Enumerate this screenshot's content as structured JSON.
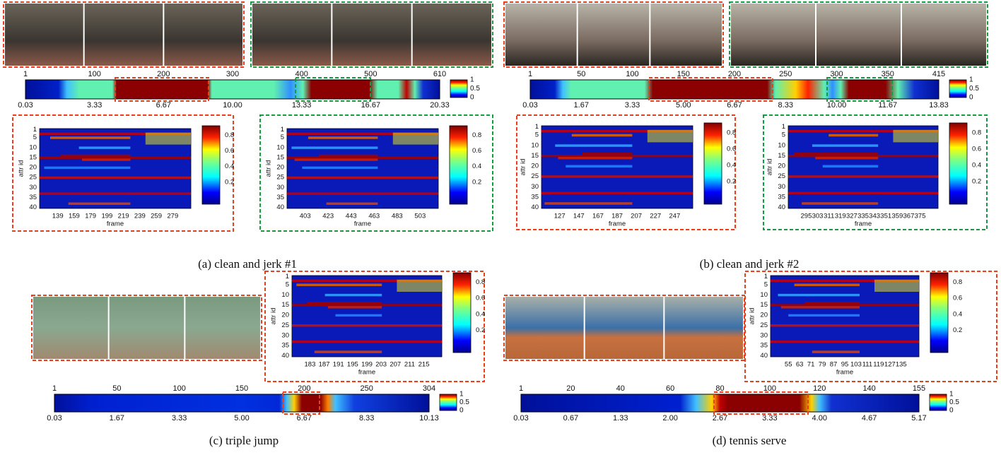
{
  "shared": {
    "timeline_colorbar_ticks": [
      "1",
      "0.5",
      "0"
    ],
    "heatmap_y_ticks": [
      "1",
      "5",
      "10",
      "15",
      "20",
      "25",
      "30",
      "35",
      "40"
    ],
    "heatmap_colorbar_ticks": [
      "0.8",
      "0.6",
      "0.4",
      "0.2"
    ],
    "x_label": "frame",
    "y_label": "attr id"
  },
  "panels": [
    {
      "caption": "(a) clean and jerk #1",
      "timeline": {
        "frame_ticks": [
          "1",
          "100",
          "200",
          "300",
          "400",
          "500",
          "610"
        ],
        "time_ticks": [
          "0.03",
          "3.33",
          "6.67",
          "10.00",
          "13.33",
          "16.67",
          "20.33"
        ]
      },
      "heatmaps": [
        {
          "frame_ticks": [
            "139",
            "159",
            "179",
            "199",
            "219",
            "239",
            "259",
            "279"
          ]
        },
        {
          "frame_ticks": [
            "403",
            "423",
            "443",
            "463",
            "483",
            "503"
          ]
        }
      ]
    },
    {
      "caption": "(b) clean and jerk #2",
      "timeline": {
        "frame_ticks": [
          "1",
          "50",
          "100",
          "150",
          "200",
          "250",
          "300",
          "350",
          "415"
        ],
        "time_ticks": [
          "0.03",
          "1.67",
          "3.33",
          "5.00",
          "6.67",
          "8.33",
          "10.00",
          "11.67",
          "13.83"
        ]
      },
      "heatmaps": [
        {
          "frame_ticks": [
            "127",
            "147",
            "167",
            "187",
            "207",
            "227",
            "247"
          ]
        },
        {
          "frame_ticks": [
            "295",
            "303",
            "311",
            "319",
            "327",
            "335",
            "343",
            "351",
            "359",
            "367",
            "375"
          ]
        }
      ]
    },
    {
      "caption": "(c) triple jump",
      "timeline": {
        "frame_ticks": [
          "1",
          "50",
          "100",
          "150",
          "200",
          "250",
          "304"
        ],
        "time_ticks": [
          "0.03",
          "1.67",
          "3.33",
          "5.00",
          "6.67",
          "8.33",
          "10.13"
        ]
      },
      "heatmaps": [
        {
          "frame_ticks": [
            "183",
            "187",
            "191",
            "195",
            "199",
            "203",
            "207",
            "211",
            "215"
          ]
        }
      ]
    },
    {
      "caption": "(d) tennis serve",
      "timeline": {
        "frame_ticks": [
          "1",
          "20",
          "40",
          "60",
          "80",
          "100",
          "120",
          "140",
          "155"
        ],
        "time_ticks": [
          "0.03",
          "0.67",
          "1.33",
          "2.00",
          "2.67",
          "3.33",
          "4.00",
          "4.67",
          "5.17"
        ]
      },
      "heatmaps": [
        {
          "frame_ticks": [
            "55",
            "63",
            "71",
            "79",
            "87",
            "95",
            "103",
            "111",
            "119",
            "127",
            "135"
          ]
        }
      ]
    }
  ]
}
